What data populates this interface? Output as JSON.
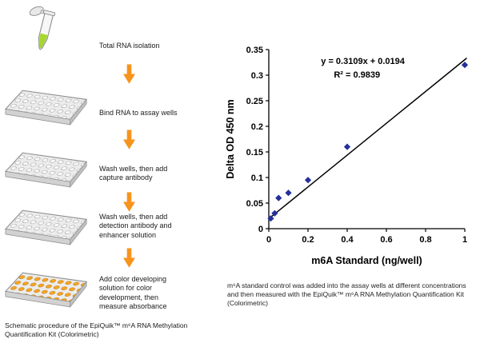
{
  "schematic": {
    "steps": [
      {
        "label": "Total RNA isolation"
      },
      {
        "label": "Bind RNA to assay wells"
      },
      {
        "label": "Wash wells, then add capture antibody"
      },
      {
        "label": "Wash wells, then add detection antibody and enhancer solution"
      },
      {
        "label": "Add color developing solution for color development, then measure absorbance"
      }
    ],
    "caption": "Schematic procedure of the EpiQuik™ m⁶A RNA Methylation Quantification Kit (Colorimetric)",
    "arrow_color": "#F7941D",
    "liquid_color": "#A6D62F",
    "well_color_gray": "#FAFAFA",
    "well_color_orange": "#F5A623"
  },
  "chart_caption": "m⁶A standard control was added into the assay wells at different concentrations and then measured with the EpiQuik™ m⁶A RNA Methylation Quantification Kit (Colorimetric)",
  "chart_data": {
    "type": "scatter",
    "title": "",
    "xlabel": "m6A Standard (ng/well)",
    "ylabel": "Delta OD 450 nm",
    "xlim": [
      0,
      1
    ],
    "ylim": [
      0,
      0.35
    ],
    "xticks": [
      0,
      0.2,
      0.4,
      0.6,
      0.8,
      1
    ],
    "xtick_labels": [
      "0",
      "0.2",
      "0.4",
      "0.6",
      "0.8",
      "1"
    ],
    "yticks": [
      0,
      0.05,
      0.1,
      0.15,
      0.2,
      0.25,
      0.3,
      0.35
    ],
    "ytick_labels": [
      "0",
      "0.05",
      "0.1",
      "0.15",
      "0.2",
      "0.25",
      "0.3",
      "0.35"
    ],
    "points": [
      [
        0.01,
        0.02
      ],
      [
        0.03,
        0.03
      ],
      [
        0.05,
        0.06
      ],
      [
        0.1,
        0.07
      ],
      [
        0.2,
        0.095
      ],
      [
        0.4,
        0.16
      ],
      [
        1.0,
        0.32
      ]
    ],
    "trendline": {
      "slope": 0.3109,
      "intercept": 0.0194
    },
    "equation": "y = 0.3109x + 0.0194",
    "r_squared": "R² = 0.9839",
    "marker_color": "#23309B",
    "line_color": "#000000",
    "grid": false,
    "legend": false
  }
}
